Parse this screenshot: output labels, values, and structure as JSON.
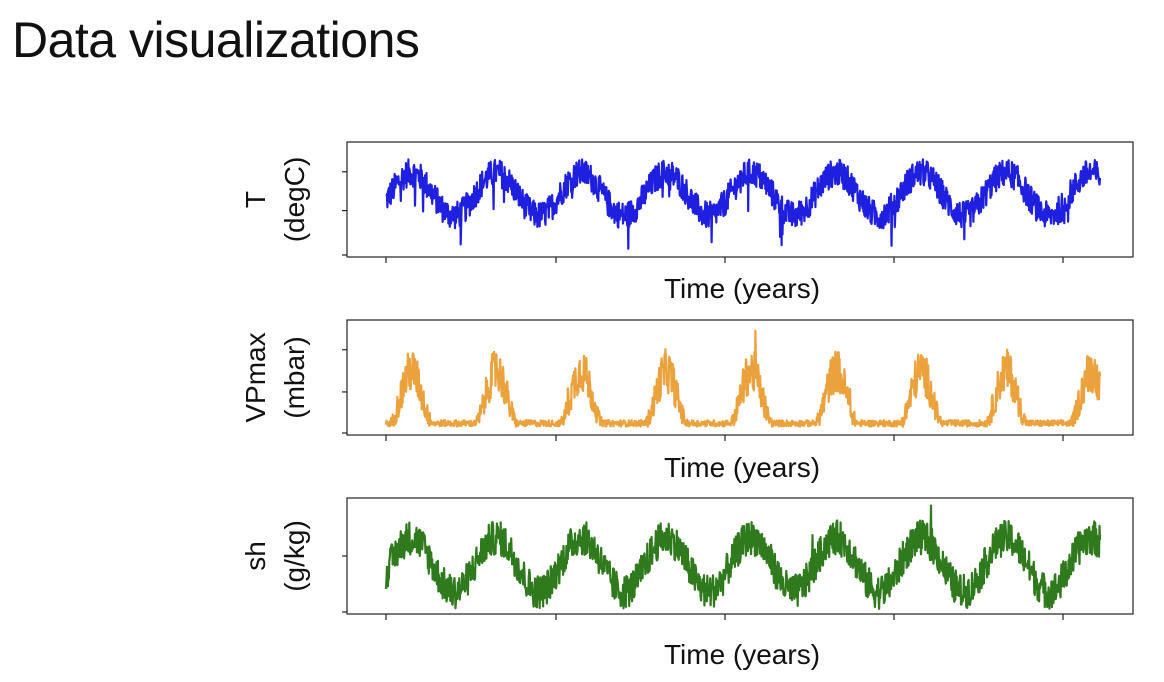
{
  "slide": {
    "title": "Data visualizations"
  },
  "chart_data": [
    {
      "type": "line",
      "id": "temperature",
      "series": [
        {
          "name": "T",
          "color": "#1f1fe0",
          "kind": "temp",
          "mean": 0.55,
          "amp": 0.2,
          "noise": 0.13
        }
      ],
      "xlabel": "Time (years)",
      "ylabel_line1": "T",
      "ylabel_line2": "(degC)",
      "xlim": [
        0,
        8.4
      ],
      "ylim": [
        0,
        1
      ],
      "x_ticks": [
        0,
        2,
        4,
        6,
        8
      ],
      "y_ticks": [
        0,
        0.4,
        0.75
      ],
      "cycles": 8.4,
      "grid": false
    },
    {
      "type": "line",
      "id": "vpmax",
      "series": [
        {
          "name": "VPmax",
          "color": "#eba13c",
          "kind": "vp",
          "mean": 0.18,
          "amp": 0.35,
          "noise": 0.35
        }
      ],
      "xlabel": "Time (years)",
      "ylabel_line1": "VPmax",
      "ylabel_line2": "(mbar)",
      "xlim": [
        0,
        8.4
      ],
      "ylim": [
        0,
        1
      ],
      "x_ticks": [
        0,
        2,
        4,
        6,
        8
      ],
      "y_ticks": [
        0,
        0.37,
        0.75
      ],
      "cycles": 8.4,
      "grid": false
    },
    {
      "type": "line",
      "id": "specific-humidity",
      "series": [
        {
          "name": "sh",
          "color": "#2f7a1c",
          "kind": "sh",
          "mean": 0.42,
          "amp": 0.25,
          "noise": 0.16
        }
      ],
      "xlabel": "Time (years)",
      "ylabel_line1": "sh",
      "ylabel_line2": "(g/kg)",
      "xlim": [
        0,
        8.4
      ],
      "ylim": [
        0,
        1
      ],
      "x_ticks": [
        0,
        2,
        4,
        6,
        8
      ],
      "y_ticks": [
        0,
        0.5
      ],
      "cycles": 8.4,
      "grid": false
    }
  ]
}
